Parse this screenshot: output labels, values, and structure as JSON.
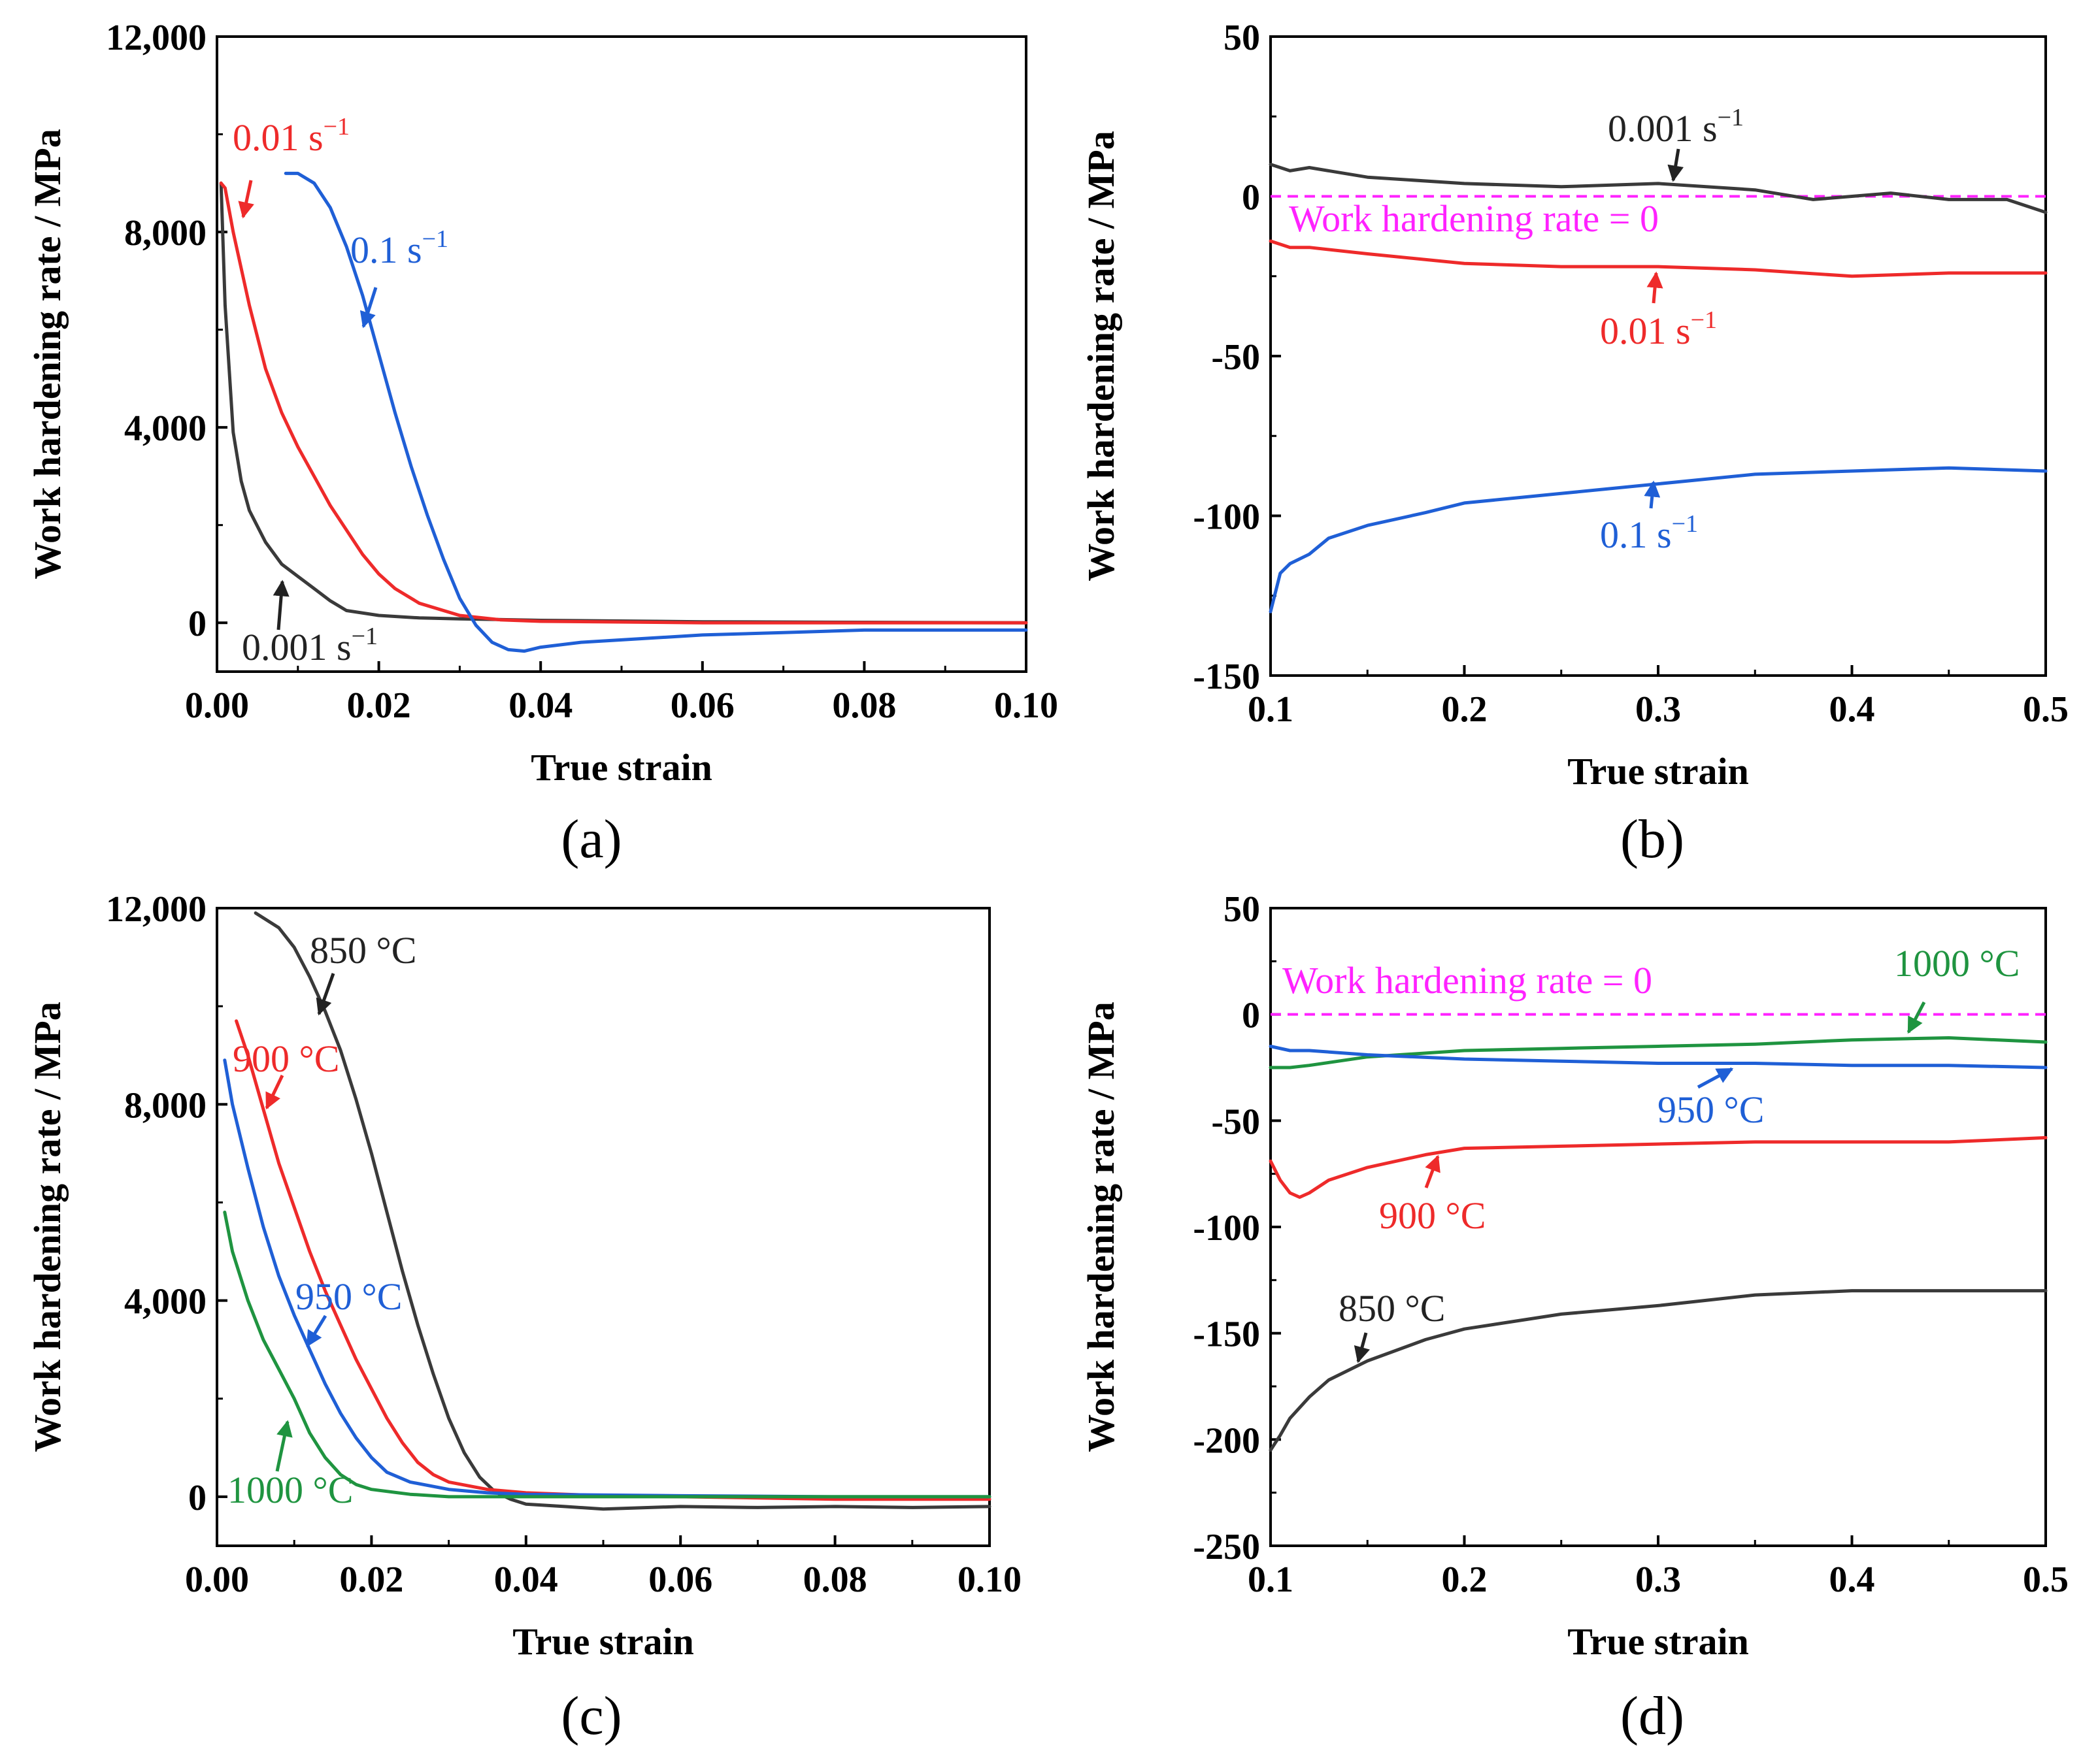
{
  "figure_title": "",
  "colors": {
    "black": "#3a3a3a",
    "red": "#ee2a2a",
    "blue": "#1f5fd6",
    "green": "#1f9440",
    "magenta": "#ff22ff",
    "axis": "#000000"
  },
  "chart_data": [
    {
      "panel": "(a)",
      "type": "line",
      "title": "",
      "xlabel": "True strain",
      "ylabel": "Work hardening rate / MPa",
      "xlim": [
        0,
        0.1
      ],
      "ylim": [
        -1000,
        12000
      ],
      "xticks": [
        0,
        0.02,
        0.04,
        0.06,
        0.08,
        0.1
      ],
      "xtick_labels": [
        "0.00",
        "0.02",
        "0.04",
        "0.06",
        "0.08",
        "0.10"
      ],
      "yticks": [
        0,
        4000,
        8000,
        12000
      ],
      "ytick_labels": [
        "0",
        "4,000",
        "8,000",
        "12,000"
      ],
      "series": [
        {
          "name": "0.001 s−1",
          "color": "black",
          "x": [
            0.0005,
            0.001,
            0.002,
            0.003,
            0.004,
            0.006,
            0.008,
            0.01,
            0.012,
            0.014,
            0.016,
            0.02,
            0.025,
            0.03,
            0.04,
            0.06,
            0.08,
            0.1
          ],
          "y": [
            9000,
            6500,
            3900,
            2900,
            2300,
            1650,
            1200,
            950,
            700,
            450,
            250,
            150,
            100,
            80,
            50,
            20,
            10,
            0
          ]
        },
        {
          "name": "0.01 s−1",
          "color": "red",
          "x": [
            0.0005,
            0.001,
            0.002,
            0.004,
            0.006,
            0.008,
            0.01,
            0.012,
            0.014,
            0.016,
            0.018,
            0.02,
            0.022,
            0.025,
            0.03,
            0.035,
            0.04,
            0.06,
            0.08,
            0.1
          ],
          "y": [
            9000,
            8900,
            8000,
            6500,
            5200,
            4300,
            3600,
            3000,
            2400,
            1900,
            1400,
            1000,
            700,
            400,
            150,
            60,
            30,
            0,
            0,
            0
          ]
        },
        {
          "name": "0.1 s−1",
          "color": "blue",
          "x": [
            0.0085,
            0.01,
            0.012,
            0.014,
            0.016,
            0.018,
            0.02,
            0.022,
            0.024,
            0.026,
            0.028,
            0.03,
            0.032,
            0.034,
            0.036,
            0.038,
            0.04,
            0.045,
            0.05,
            0.06,
            0.07,
            0.08,
            0.09,
            0.1
          ],
          "y": [
            9200,
            9200,
            9000,
            8500,
            7700,
            6700,
            5500,
            4300,
            3200,
            2200,
            1300,
            500,
            -50,
            -400,
            -550,
            -580,
            -500,
            -400,
            -350,
            -250,
            -200,
            -150,
            -150,
            -150
          ]
        }
      ],
      "annotations": [
        "0.01 s−1",
        "0.1 s−1",
        "0.001 s−1"
      ]
    },
    {
      "panel": "(b)",
      "type": "line",
      "title": "",
      "xlabel": "True strain",
      "ylabel": "Work hardening rate / MPa",
      "xlim": [
        0.1,
        0.5
      ],
      "ylim": [
        -150,
        50
      ],
      "xticks": [
        0.1,
        0.2,
        0.3,
        0.4,
        0.5
      ],
      "xtick_labels": [
        "0.1",
        "0.2",
        "0.3",
        "0.4",
        "0.5"
      ],
      "yticks": [
        -150,
        -100,
        -50,
        0,
        50
      ],
      "ytick_labels": [
        "-150",
        "-100",
        "-50",
        "0",
        "50"
      ],
      "reference_line": {
        "y": 0,
        "label": "Work hardening rate = 0"
      },
      "series": [
        {
          "name": "0.001 s−1",
          "color": "black",
          "x": [
            0.1,
            0.11,
            0.12,
            0.15,
            0.2,
            0.25,
            0.3,
            0.35,
            0.38,
            0.42,
            0.45,
            0.48,
            0.5
          ],
          "y": [
            10,
            8,
            9,
            6,
            4,
            3,
            4,
            2,
            -1,
            1,
            -1,
            -1,
            -5
          ]
        },
        {
          "name": "0.01 s−1",
          "color": "red",
          "x": [
            0.1,
            0.11,
            0.12,
            0.15,
            0.2,
            0.25,
            0.3,
            0.35,
            0.4,
            0.45,
            0.5
          ],
          "y": [
            -14,
            -16,
            -16,
            -18,
            -21,
            -22,
            -22,
            -23,
            -25,
            -24,
            -24
          ]
        },
        {
          "name": "0.1 s−1",
          "color": "blue",
          "x": [
            0.1,
            0.105,
            0.11,
            0.12,
            0.13,
            0.15,
            0.18,
            0.2,
            0.25,
            0.3,
            0.35,
            0.4,
            0.45,
            0.5
          ],
          "y": [
            -130,
            -118,
            -115,
            -112,
            -107,
            -103,
            -99,
            -96,
            -93,
            -90,
            -87,
            -86,
            -85,
            -86
          ]
        }
      ],
      "annotations": [
        "0.001 s−1",
        "Work hardening rate = 0",
        "0.01 s−1",
        "0.1 s−1"
      ]
    },
    {
      "panel": "(c)",
      "type": "line",
      "title": "",
      "xlabel": "True strain",
      "ylabel": "Work hardening rate / MPa",
      "xlim": [
        0,
        0.1
      ],
      "ylim": [
        -1000,
        12000
      ],
      "xticks": [
        0,
        0.02,
        0.04,
        0.06,
        0.08,
        0.1
      ],
      "xtick_labels": [
        "0.00",
        "0.02",
        "0.04",
        "0.06",
        "0.08",
        "0.10"
      ],
      "yticks": [
        0,
        4000,
        8000,
        12000
      ],
      "ytick_labels": [
        "0",
        "4,000",
        "8,000",
        "12,000"
      ],
      "series": [
        {
          "name": "850 °C",
          "color": "black",
          "x": [
            0.005,
            0.008,
            0.01,
            0.012,
            0.014,
            0.016,
            0.018,
            0.02,
            0.022,
            0.024,
            0.026,
            0.028,
            0.03,
            0.032,
            0.034,
            0.036,
            0.038,
            0.04,
            0.045,
            0.05,
            0.06,
            0.07,
            0.08,
            0.09,
            0.1
          ],
          "y": [
            11900,
            11600,
            11200,
            10600,
            9900,
            9100,
            8100,
            7000,
            5800,
            4600,
            3500,
            2500,
            1600,
            900,
            400,
            100,
            -50,
            -150,
            -200,
            -250,
            -200,
            -220,
            -200,
            -220,
            -200
          ]
        },
        {
          "name": "900 °C",
          "color": "red",
          "x": [
            0.0025,
            0.004,
            0.006,
            0.008,
            0.01,
            0.012,
            0.014,
            0.016,
            0.018,
            0.02,
            0.022,
            0.024,
            0.026,
            0.028,
            0.03,
            0.035,
            0.04,
            0.05,
            0.06,
            0.08,
            0.1
          ],
          "y": [
            9700,
            9000,
            7900,
            6800,
            5900,
            5000,
            4200,
            3500,
            2800,
            2200,
            1600,
            1100,
            700,
            450,
            300,
            150,
            80,
            20,
            0,
            -50,
            -50
          ]
        },
        {
          "name": "950 °C",
          "color": "blue",
          "x": [
            0.001,
            0.002,
            0.004,
            0.006,
            0.008,
            0.01,
            0.012,
            0.014,
            0.016,
            0.018,
            0.02,
            0.022,
            0.025,
            0.03,
            0.035,
            0.04,
            0.06,
            0.08,
            0.1
          ],
          "y": [
            8900,
            8000,
            6700,
            5500,
            4500,
            3700,
            3000,
            2300,
            1700,
            1200,
            800,
            500,
            300,
            150,
            80,
            50,
            20,
            0,
            0
          ]
        },
        {
          "name": "1000 °C",
          "color": "green",
          "x": [
            0.001,
            0.002,
            0.004,
            0.006,
            0.008,
            0.01,
            0.012,
            0.014,
            0.016,
            0.018,
            0.02,
            0.025,
            0.03,
            0.04,
            0.06,
            0.08,
            0.1
          ],
          "y": [
            5800,
            5000,
            4000,
            3200,
            2600,
            2000,
            1300,
            800,
            450,
            250,
            150,
            50,
            0,
            0,
            0,
            0,
            0
          ]
        }
      ],
      "annotations": [
        "850 °C",
        "900 °C",
        "950 °C",
        "1000 °C"
      ]
    },
    {
      "panel": "(d)",
      "type": "line",
      "title": "",
      "xlabel": "True strain",
      "ylabel": "Work hardening rate / MPa",
      "xlim": [
        0.1,
        0.5
      ],
      "ylim": [
        -250,
        50
      ],
      "xticks": [
        0.1,
        0.2,
        0.3,
        0.4,
        0.5
      ],
      "xtick_labels": [
        "0.1",
        "0.2",
        "0.3",
        "0.4",
        "0.5"
      ],
      "yticks": [
        -250,
        -200,
        -150,
        -100,
        -50,
        0,
        50
      ],
      "ytick_labels": [
        "-250",
        "-200",
        "-150",
        "-100",
        "-50",
        "0",
        "50"
      ],
      "reference_line": {
        "y": 0,
        "label": "Work hardening rate = 0"
      },
      "series": [
        {
          "name": "1000 °C",
          "color": "green",
          "x": [
            0.1,
            0.11,
            0.12,
            0.15,
            0.2,
            0.25,
            0.3,
            0.35,
            0.4,
            0.45,
            0.5
          ],
          "y": [
            -25,
            -25,
            -24,
            -20,
            -17,
            -16,
            -15,
            -14,
            -12,
            -11,
            -13
          ]
        },
        {
          "name": "950 °C",
          "color": "blue",
          "x": [
            0.1,
            0.11,
            0.12,
            0.15,
            0.2,
            0.25,
            0.3,
            0.35,
            0.4,
            0.45,
            0.5
          ],
          "y": [
            -15,
            -17,
            -17,
            -19,
            -21,
            -22,
            -23,
            -23,
            -24,
            -24,
            -25
          ]
        },
        {
          "name": "900 °C",
          "color": "red",
          "x": [
            0.1,
            0.105,
            0.11,
            0.115,
            0.12,
            0.13,
            0.15,
            0.18,
            0.2,
            0.25,
            0.3,
            0.35,
            0.4,
            0.45,
            0.5
          ],
          "y": [
            -69,
            -78,
            -84,
            -86,
            -84,
            -78,
            -72,
            -66,
            -63,
            -62,
            -61,
            -60,
            -60,
            -60,
            -58
          ]
        },
        {
          "name": "850 °C",
          "color": "black",
          "x": [
            0.1,
            0.105,
            0.11,
            0.12,
            0.13,
            0.15,
            0.18,
            0.2,
            0.25,
            0.3,
            0.35,
            0.4,
            0.45,
            0.5
          ],
          "y": [
            -205,
            -198,
            -190,
            -180,
            -172,
            -163,
            -153,
            -148,
            -141,
            -137,
            -132,
            -130,
            -130,
            -130
          ]
        }
      ],
      "annotations": [
        "Work hardening rate = 0",
        "1000 °C",
        "950 °C",
        "900 °C",
        "850 °C"
      ]
    }
  ],
  "annotation_text": {
    "a_r001": "0.01 s",
    "a_r01": "0.1 s",
    "a_r0001": "0.001 s",
    "b_r0001": "0.001 s",
    "b_ref": "Work hardening rate = 0",
    "b_r001": "0.01 s",
    "b_r01": "0.1 s",
    "c_850": "850 °C",
    "c_900": "900 °C",
    "c_950": "950 °C",
    "c_1000": "1000 °C",
    "d_ref": "Work hardening rate = 0",
    "d_1000": "1000 °C",
    "d_950": "950 °C",
    "d_900": "900 °C",
    "d_850": "850 °C",
    "sup": "−1"
  }
}
